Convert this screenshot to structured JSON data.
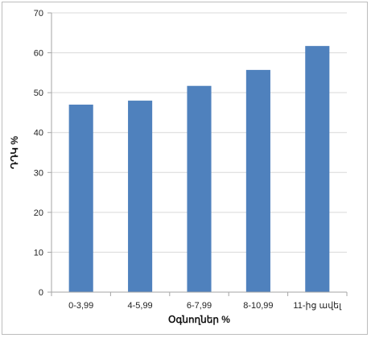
{
  "chart_data": {
    "type": "bar",
    "title": "",
    "xlabel": "Օգնողներ %",
    "ylabel": "ԴԴԿ %",
    "categories": [
      "0-3,99",
      "4-5,99",
      "6-7,99",
      "8-10,99",
      "11-ից ավել"
    ],
    "values": [
      47,
      48,
      51.7,
      55.7,
      61.7
    ],
    "ylim": [
      0,
      70
    ],
    "yticks": [
      0,
      10,
      20,
      30,
      40,
      50,
      60,
      70
    ],
    "grid": true,
    "legend": "none",
    "bar_color": "#4F81BD",
    "grid_color": "#d9d9d9",
    "axis_color": "#a6a6a6"
  }
}
